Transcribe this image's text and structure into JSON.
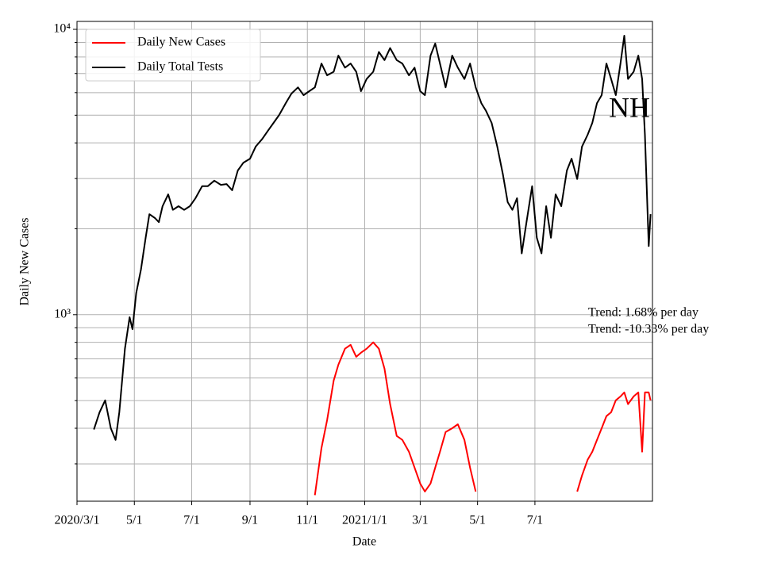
{
  "chart_data": {
    "type": "line",
    "xlabel": "Date",
    "ylabel": "Daily New Cases",
    "annotations": [
      "NH",
      "Trend: 1.68% per day",
      "Trend: -10.33% per day"
    ],
    "x": [
      18,
      24,
      30,
      36,
      41,
      45,
      51,
      56,
      59,
      63,
      68,
      73,
      77,
      83,
      87,
      91,
      97,
      102,
      108,
      114,
      120,
      126,
      133,
      139,
      146,
      153,
      159,
      165,
      171,
      177,
      184,
      190,
      197,
      203,
      209,
      215,
      222,
      228,
      235,
      241,
      247,
      253,
      260,
      266,
      273,
      278,
      285,
      291,
      297,
      302,
      308,
      315,
      321,
      327,
      333,
      340,
      346,
      353,
      359,
      365,
      370,
      376,
      381,
      386,
      392,
      399,
      405,
      412,
      418,
      424,
      430,
      435,
      441,
      447,
      453,
      458,
      463,
      468,
      473,
      478,
      484,
      489,
      494,
      499,
      504,
      509,
      515,
      521,
      526,
      532,
      537,
      543,
      548,
      553,
      558,
      563,
      568,
      573,
      578,
      582,
      586,
      592,
      597,
      601,
      604,
      608,
      610
    ],
    "series": [
      {
        "name": "Daily New Cases",
        "color": "#ff0000",
        "values": [
          null,
          null,
          null,
          null,
          null,
          null,
          null,
          null,
          null,
          null,
          null,
          null,
          null,
          null,
          null,
          null,
          null,
          null,
          null,
          null,
          null,
          null,
          null,
          null,
          null,
          null,
          null,
          null,
          null,
          null,
          null,
          null,
          null,
          null,
          null,
          null,
          null,
          null,
          null,
          null,
          null,
          233,
          341,
          427,
          588,
          668,
          760,
          784,
          712,
          736,
          760,
          800,
          760,
          647,
          486,
          376,
          364,
          331,
          291,
          256,
          240,
          256,
          291,
          331,
          388,
          400,
          413,
          364,
          291,
          240,
          null,
          null,
          null,
          null,
          null,
          null,
          null,
          null,
          null,
          null,
          null,
          null,
          null,
          null,
          null,
          null,
          null,
          null,
          null,
          240,
          273,
          310,
          331,
          364,
          400,
          441,
          455,
          501,
          517,
          534,
          486,
          517,
          534,
          331,
          534,
          534,
          501
        ]
      },
      {
        "name": "Daily Total Tests",
        "color": "#000000",
        "values": [
          396,
          455,
          501,
          400,
          364,
          455,
          760,
          980,
          890,
          1190,
          1440,
          1860,
          2250,
          2180,
          2110,
          2400,
          2640,
          2330,
          2400,
          2330,
          2400,
          2560,
          2820,
          2820,
          2950,
          2850,
          2870,
          2730,
          3200,
          3410,
          3520,
          3880,
          4130,
          4410,
          4700,
          5010,
          5510,
          5950,
          6260,
          5880,
          6070,
          6260,
          7590,
          6900,
          7100,
          8090,
          7340,
          7590,
          7100,
          6070,
          6700,
          7100,
          8330,
          7800,
          8600,
          7800,
          7590,
          6900,
          7340,
          6070,
          5880,
          8090,
          8920,
          7590,
          6260,
          8090,
          7340,
          6700,
          7590,
          6260,
          5510,
          5180,
          4700,
          3880,
          3100,
          2480,
          2330,
          2560,
          1640,
          2110,
          2820,
          1860,
          1640,
          2400,
          1860,
          2640,
          2400,
          3200,
          3520,
          2990,
          3880,
          4270,
          4700,
          5510,
          5880,
          7590,
          6700,
          5880,
          7590,
          9500,
          6700,
          7100,
          8090,
          6700,
          4270,
          1740,
          2250
        ]
      }
    ],
    "xlim": [
      0,
      612
    ],
    "xticks": [
      {
        "value": 0,
        "label": "2020/3/1"
      },
      {
        "value": 61,
        "label": "5/1"
      },
      {
        "value": 122,
        "label": "7/1"
      },
      {
        "value": 184,
        "label": "9/1"
      },
      {
        "value": 245,
        "label": "11/1"
      },
      {
        "value": 306,
        "label": "2021/1/1"
      },
      {
        "value": 365,
        "label": "3/1"
      },
      {
        "value": 426,
        "label": "5/1"
      },
      {
        "value": 487,
        "label": "7/1"
      }
    ],
    "ylim": [
      222,
      10660
    ],
    "yticks": [
      {
        "value": 1000,
        "label": "10³"
      },
      {
        "value": 10000,
        "label": "10⁴"
      }
    ],
    "minor_yticks": [
      300,
      400,
      500,
      600,
      700,
      800,
      900,
      2000,
      3000,
      4000,
      5000,
      6000,
      7000,
      8000,
      9000
    ],
    "log_y": true,
    "grid": true,
    "legend": "upper left"
  }
}
